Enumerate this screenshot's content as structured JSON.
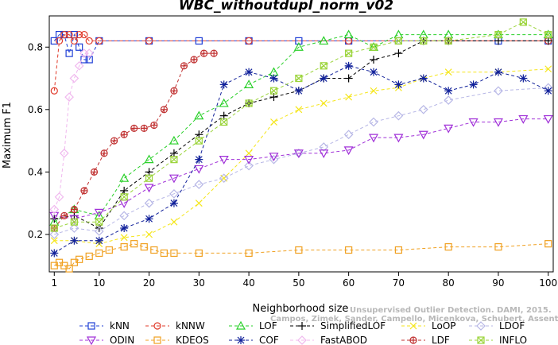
{
  "chart_data": {
    "type": "line",
    "title": "WBC_withoutdupl_norm_v02",
    "xlabel": "Neighborhood size",
    "ylabel": "Maximum F1",
    "xlim": [
      0,
      101
    ],
    "ylim": [
      0.08,
      0.9
    ],
    "xticks": [
      1,
      10,
      20,
      30,
      40,
      50,
      60,
      70,
      80,
      90,
      100
    ],
    "yticks": [
      0.2,
      0.4,
      0.6,
      0.8
    ],
    "grid": false,
    "legend_position": "bottom",
    "watermark": [
      "Unsupervised Outlier Detection. DAMI, 2015.",
      "Campos, Zimek, Sander, Campello, Micenkova, Schubert, Assent, Houle"
    ],
    "series": [
      {
        "name": "kNN",
        "color": "#1f3fd6",
        "marker": "square",
        "x": [
          1,
          2,
          3,
          4,
          5,
          6,
          7,
          8,
          10,
          20,
          30,
          40,
          50,
          60,
          70,
          80,
          90,
          100
        ],
        "y": [
          0.82,
          0.84,
          0.84,
          0.78,
          0.84,
          0.8,
          0.76,
          0.76,
          0.82,
          0.82,
          0.82,
          0.82,
          0.82,
          0.82,
          0.82,
          0.82,
          0.82,
          0.82
        ]
      },
      {
        "name": "kNNW",
        "color": "#e03a2a",
        "marker": "circle",
        "x": [
          1,
          2,
          3,
          4,
          5,
          6,
          7,
          8,
          10,
          20,
          40,
          60,
          80,
          100
        ],
        "y": [
          0.66,
          0.82,
          0.84,
          0.84,
          0.82,
          0.84,
          0.84,
          0.82,
          0.82,
          0.82,
          0.82,
          0.82,
          0.82,
          0.82
        ]
      },
      {
        "name": "LOF",
        "color": "#2ad02a",
        "marker": "triangle",
        "x": [
          1,
          5,
          10,
          15,
          20,
          25,
          30,
          35,
          40,
          45,
          50,
          55,
          60,
          65,
          70,
          75,
          80,
          90,
          100
        ],
        "y": [
          0.24,
          0.28,
          0.26,
          0.38,
          0.44,
          0.5,
          0.58,
          0.62,
          0.68,
          0.72,
          0.8,
          0.82,
          0.84,
          0.8,
          0.84,
          0.84,
          0.84,
          0.84,
          0.84
        ]
      },
      {
        "name": "SimplifiedLOF",
        "color": "#000000",
        "marker": "plus",
        "x": [
          1,
          5,
          10,
          15,
          20,
          25,
          30,
          35,
          40,
          45,
          50,
          55,
          60,
          65,
          70,
          75,
          80,
          90,
          100
        ],
        "y": [
          0.25,
          0.26,
          0.22,
          0.34,
          0.4,
          0.46,
          0.52,
          0.58,
          0.62,
          0.64,
          0.66,
          0.7,
          0.7,
          0.76,
          0.78,
          0.82,
          0.82,
          0.82,
          0.82
        ]
      },
      {
        "name": "LoOP",
        "color": "#f5e61a",
        "marker": "x",
        "x": [
          1,
          5,
          10,
          15,
          20,
          25,
          30,
          35,
          40,
          45,
          50,
          55,
          60,
          65,
          70,
          75,
          80,
          90,
          100
        ],
        "y": [
          0.18,
          0.18,
          0.17,
          0.19,
          0.2,
          0.24,
          0.3,
          0.38,
          0.46,
          0.56,
          0.6,
          0.62,
          0.64,
          0.66,
          0.67,
          0.7,
          0.72,
          0.72,
          0.73
        ]
      },
      {
        "name": "LDOF",
        "color": "#b7b7e6",
        "marker": "diamond",
        "x": [
          1,
          5,
          10,
          15,
          20,
          25,
          30,
          35,
          40,
          45,
          50,
          55,
          60,
          65,
          70,
          75,
          80,
          90,
          100
        ],
        "y": [
          0.2,
          0.22,
          0.21,
          0.26,
          0.3,
          0.33,
          0.36,
          0.38,
          0.42,
          0.44,
          0.46,
          0.48,
          0.52,
          0.56,
          0.58,
          0.6,
          0.63,
          0.66,
          0.67
        ]
      },
      {
        "name": "ODIN",
        "color": "#a030d8",
        "marker": "triangle-down",
        "x": [
          1,
          5,
          10,
          15,
          20,
          25,
          30,
          35,
          40,
          45,
          50,
          55,
          60,
          65,
          70,
          75,
          80,
          85,
          90,
          95,
          100
        ],
        "y": [
          0.26,
          0.25,
          0.27,
          0.3,
          0.35,
          0.38,
          0.41,
          0.44,
          0.44,
          0.45,
          0.46,
          0.46,
          0.47,
          0.51,
          0.51,
          0.52,
          0.54,
          0.56,
          0.56,
          0.57,
          0.57
        ]
      },
      {
        "name": "KDEOS",
        "color": "#f0a020",
        "marker": "square",
        "x": [
          1,
          2,
          3,
          4,
          5,
          6,
          8,
          10,
          12,
          15,
          17,
          19,
          21,
          23,
          25,
          30,
          40,
          50,
          60,
          70,
          80,
          90,
          100
        ],
        "y": [
          0.1,
          0.11,
          0.1,
          0.09,
          0.11,
          0.12,
          0.13,
          0.14,
          0.15,
          0.16,
          0.17,
          0.16,
          0.15,
          0.14,
          0.14,
          0.14,
          0.14,
          0.15,
          0.15,
          0.15,
          0.16,
          0.16,
          0.17
        ]
      },
      {
        "name": "COF",
        "color": "#10209a",
        "marker": "asterisk",
        "x": [
          1,
          5,
          10,
          15,
          20,
          25,
          30,
          35,
          40,
          45,
          50,
          55,
          60,
          65,
          70,
          75,
          80,
          85,
          90,
          95,
          100
        ],
        "y": [
          0.14,
          0.18,
          0.18,
          0.22,
          0.25,
          0.3,
          0.44,
          0.68,
          0.72,
          0.7,
          0.66,
          0.7,
          0.74,
          0.72,
          0.68,
          0.7,
          0.66,
          0.68,
          0.72,
          0.7,
          0.66
        ]
      },
      {
        "name": "FastABOD",
        "color": "#f0b8ee",
        "marker": "diamond",
        "x": [
          1,
          2,
          3,
          4,
          5,
          6,
          7,
          8
        ],
        "y": [
          0.28,
          0.32,
          0.46,
          0.64,
          0.7,
          0.74,
          0.78,
          0.78
        ]
      },
      {
        "name": "LDF",
        "color": "#c03030",
        "marker": "circle-plus",
        "x": [
          1,
          3,
          5,
          7,
          9,
          11,
          13,
          15,
          17,
          19,
          21,
          23,
          25,
          27,
          29,
          31,
          33
        ],
        "y": [
          0.22,
          0.26,
          0.28,
          0.34,
          0.4,
          0.46,
          0.5,
          0.52,
          0.54,
          0.54,
          0.55,
          0.6,
          0.66,
          0.74,
          0.76,
          0.78,
          0.78
        ]
      },
      {
        "name": "INFLO",
        "color": "#9bd43a",
        "marker": "square-x",
        "x": [
          1,
          5,
          10,
          15,
          20,
          25,
          30,
          35,
          40,
          45,
          50,
          55,
          60,
          65,
          70,
          75,
          80,
          90,
          95,
          100
        ],
        "y": [
          0.22,
          0.24,
          0.24,
          0.32,
          0.38,
          0.44,
          0.5,
          0.56,
          0.62,
          0.66,
          0.7,
          0.74,
          0.78,
          0.8,
          0.82,
          0.82,
          0.82,
          0.84,
          0.88,
          0.84
        ]
      }
    ]
  }
}
